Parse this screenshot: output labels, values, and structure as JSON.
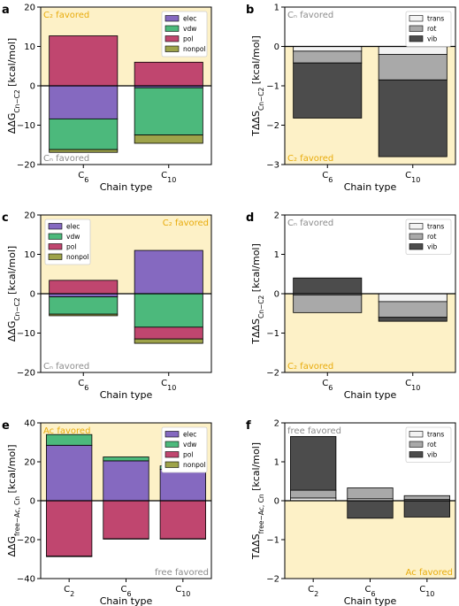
{
  "colors": {
    "favored_bg": "#fdf1c7",
    "elec": "#8569c0",
    "vdw": "#4cb97c",
    "pol": "#c0466f",
    "nonpol": "#9ea34a",
    "trans": "#f3f3f3",
    "rot": "#a9a9a9",
    "vib": "#4c4c4c",
    "annot_gold": "#e8ab0c",
    "annot_gray": "#8c8c8c"
  },
  "chart_data": [
    {
      "panel": "a",
      "type": "bar",
      "stacked": true,
      "xlabel": "Chain type",
      "ylabel": "ΔΔG_{Cn−C2} [kcal/mol]",
      "ylim": [
        -20,
        20
      ],
      "yticks": [
        "20",
        "10",
        "0",
        "−10",
        "−20"
      ],
      "categories": [
        "C6",
        "C10"
      ],
      "series": [
        {
          "name": "elec",
          "values": [
            -8.4,
            -0.5
          ]
        },
        {
          "name": "vdw",
          "values": [
            -7.8,
            -12.0
          ]
        },
        {
          "name": "pol",
          "values": [
            12.7,
            6.0
          ]
        },
        {
          "name": "nonpol",
          "values": [
            -0.7,
            -2.1
          ]
        }
      ],
      "legend_position": "top-right",
      "favored_top": "C₂ favored",
      "favored_bottom": "Cₙ favored",
      "shade": "top"
    },
    {
      "panel": "b",
      "type": "bar",
      "stacked": true,
      "xlabel": "Chain type",
      "ylabel": "TΔΔS_{Cn−C2} [kcal/mol]",
      "ylim": [
        -3,
        1
      ],
      "yticks": [
        "1",
        "0",
        "−1",
        "−2",
        "−3"
      ],
      "categories": [
        "C6",
        "C10"
      ],
      "series": [
        {
          "name": "trans",
          "values": [
            -0.12,
            -0.2
          ]
        },
        {
          "name": "rot",
          "values": [
            -0.3,
            -0.65
          ]
        },
        {
          "name": "vib",
          "values": [
            -1.4,
            -1.95
          ]
        }
      ],
      "legend_position": "top-right",
      "favored_top": "Cₙ favored",
      "favored_bottom": "C₂ favored",
      "shade": "bottom"
    },
    {
      "panel": "c",
      "type": "bar",
      "stacked": true,
      "xlabel": "Chain type",
      "ylabel": "ΔΔG_{Cn−C2} [kcal/mol]",
      "ylim": [
        -20,
        20
      ],
      "yticks": [
        "20",
        "10",
        "0",
        "−10",
        "−20"
      ],
      "categories": [
        "C6",
        "C10"
      ],
      "series": [
        {
          "name": "elec",
          "values": [
            -0.8,
            11.0
          ]
        },
        {
          "name": "vdw",
          "values": [
            -4.4,
            -8.5
          ]
        },
        {
          "name": "pol",
          "values": [
            3.4,
            -3.0
          ]
        },
        {
          "name": "nonpol",
          "values": [
            -0.4,
            -1.1
          ]
        }
      ],
      "legend_position": "top-left",
      "favored_top": "C₂ favored",
      "favored_bottom": "Cₙ favored",
      "shade": "top"
    },
    {
      "panel": "d",
      "type": "bar",
      "stacked": true,
      "xlabel": "Chain type",
      "ylabel": "TΔΔS_{Cn−C2} [kcal/mol]",
      "ylim": [
        -2,
        2
      ],
      "yticks": [
        "2",
        "1",
        "0",
        "−1",
        "−2"
      ],
      "categories": [
        "C6",
        "C10"
      ],
      "series": [
        {
          "name": "trans",
          "values": [
            -0.03,
            -0.2
          ]
        },
        {
          "name": "rot",
          "values": [
            -0.45,
            -0.4
          ]
        },
        {
          "name": "vib",
          "values": [
            0.4,
            -0.1
          ]
        }
      ],
      "legend_position": "top-right",
      "favored_top": "Cₙ favored",
      "favored_bottom": "C₂ favored",
      "shade": "bottom"
    },
    {
      "panel": "e",
      "type": "bar",
      "stacked": true,
      "xlabel": "Chain type",
      "ylabel": "ΔΔG_{free−Ac, Cn} [kcal/mol]",
      "ylim": [
        -40,
        40
      ],
      "yticks": [
        "40",
        "20",
        "0",
        "−20",
        "−40"
      ],
      "categories": [
        "C2",
        "C6",
        "C10"
      ],
      "series": [
        {
          "name": "elec",
          "values": [
            28.5,
            20.5,
            16.2
          ]
        },
        {
          "name": "vdw",
          "values": [
            5.5,
            2.0,
            1.7
          ]
        },
        {
          "name": "pol",
          "values": [
            -28.5,
            -19.5,
            -19.5
          ]
        },
        {
          "name": "nonpol",
          "values": [
            -0.2,
            -0.1,
            -0.1
          ]
        }
      ],
      "legend_position": "top-right",
      "favored_top": "Ac favored",
      "favored_bottom": "free favored",
      "shade": "top"
    },
    {
      "panel": "f",
      "type": "bar",
      "stacked": true,
      "xlabel": "Chain type",
      "ylabel": "TΔΔS_{free−Ac, Cn} [kcal/mol]",
      "ylim": [
        -2,
        2
      ],
      "yticks": [
        "2",
        "1",
        "0",
        "−1",
        "−2"
      ],
      "categories": [
        "C2",
        "C6",
        "C10"
      ],
      "series": [
        {
          "name": "trans",
          "values": [
            0.07,
            0.05,
            0.03
          ]
        },
        {
          "name": "rot",
          "values": [
            0.2,
            0.28,
            0.1
          ]
        },
        {
          "name": "vib",
          "values": [
            1.38,
            -0.45,
            -0.42
          ]
        }
      ],
      "legend_position": "top-right",
      "favored_top": "free favored",
      "favored_bottom": "Ac favored",
      "shade": "bottom"
    }
  ]
}
